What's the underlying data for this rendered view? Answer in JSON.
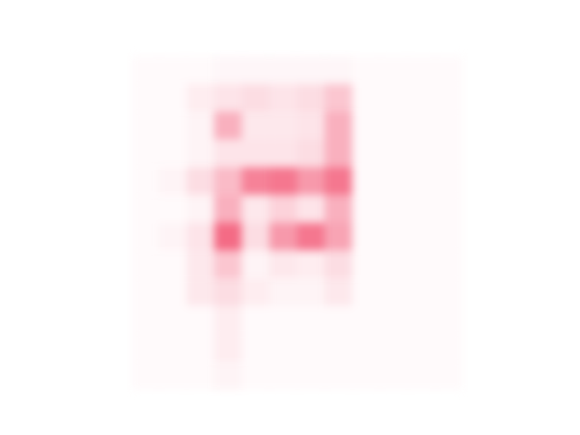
{
  "chart_data": {
    "type": "heatmap",
    "color": "#ee1c44",
    "tick_labels": false,
    "zlim": [
      0,
      1
    ],
    "cells": [
      [
        0.02,
        0.02,
        0.02,
        0.04,
        0.04,
        0.04,
        0.04,
        0.04,
        0.02,
        0.02,
        0.02,
        0.02
      ],
      [
        0.02,
        0.02,
        0.08,
        0.12,
        0.15,
        0.12,
        0.15,
        0.25,
        0.02,
        0.02,
        0.02,
        0.02
      ],
      [
        0.02,
        0.02,
        0.05,
        0.35,
        0.1,
        0.1,
        0.12,
        0.35,
        0.02,
        0.02,
        0.02,
        0.02
      ],
      [
        0.02,
        0.02,
        0.05,
        0.12,
        0.12,
        0.12,
        0.15,
        0.35,
        0.02,
        0.02,
        0.02,
        0.02
      ],
      [
        0.02,
        0.05,
        0.15,
        0.3,
        0.55,
        0.6,
        0.45,
        0.6,
        0.02,
        0.02,
        0.02,
        0.02
      ],
      [
        0.02,
        0.02,
        0.05,
        0.35,
        0.1,
        0.2,
        0.12,
        0.35,
        0.02,
        0.02,
        0.02,
        0.02
      ],
      [
        0.02,
        0.05,
        0.12,
        0.65,
        0.15,
        0.45,
        0.6,
        0.4,
        0.02,
        0.02,
        0.02,
        0.02
      ],
      [
        0.02,
        0.02,
        0.1,
        0.25,
        0.05,
        0.1,
        0.08,
        0.15,
        0.02,
        0.02,
        0.02,
        0.02
      ],
      [
        0.02,
        0.02,
        0.1,
        0.15,
        0.08,
        0.05,
        0.05,
        0.1,
        0.02,
        0.02,
        0.02,
        0.02
      ],
      [
        0.02,
        0.02,
        0.02,
        0.08,
        0.02,
        0.02,
        0.02,
        0.02,
        0.02,
        0.02,
        0.02,
        0.02
      ],
      [
        0.02,
        0.02,
        0.02,
        0.08,
        0.02,
        0.02,
        0.02,
        0.02,
        0.02,
        0.02,
        0.02,
        0.02
      ],
      [
        0.02,
        0.02,
        0.02,
        0.05,
        0.02,
        0.02,
        0.02,
        0.02,
        0.02,
        0.02,
        0.02,
        0.02
      ]
    ]
  }
}
